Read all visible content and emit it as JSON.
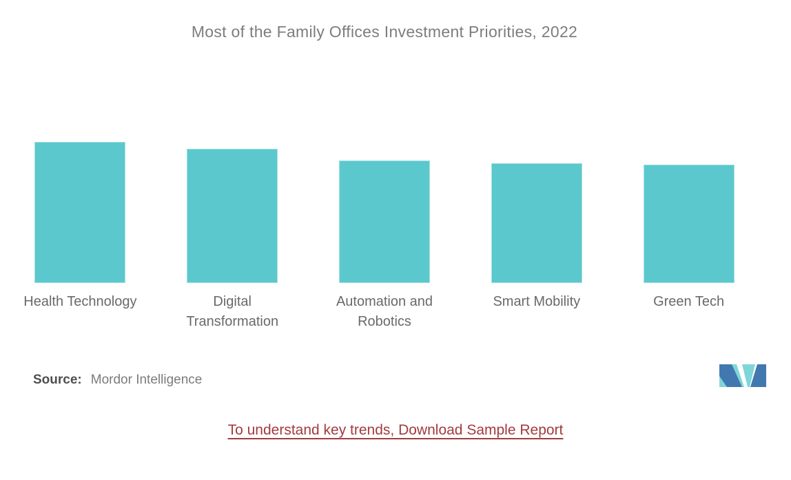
{
  "header": {
    "title": "Most of the Family Offices Investment Priorities, 2022"
  },
  "chart_data": {
    "type": "bar",
    "title": "Most of the Family Offices Investment Priorities, 2022",
    "categories": [
      "Health Technology",
      "Digital Transformation",
      "Automation and Robotics",
      "Smart Mobility",
      "Green Tech"
    ],
    "category_label_lines": [
      [
        "Health Technology"
      ],
      [
        "Digital",
        "Transformation"
      ],
      [
        "Automation and",
        "Robotics"
      ],
      [
        "Smart Mobility"
      ],
      [
        "Green Tech"
      ]
    ],
    "values": [
      100,
      95,
      87,
      85,
      84
    ],
    "values_note": "no numeric axis or data labels shown in image; values estimated from relative bar heights (tallest = 100)",
    "xlabel": "",
    "ylabel": "",
    "ylim": [
      0,
      100
    ],
    "gridlines": false,
    "value_axis_visible": false,
    "legend_position": "none",
    "bar_color": "#5BC8CE"
  },
  "source": {
    "label": "Source:",
    "value": "Mordor Intelligence"
  },
  "logo": {
    "alt": "mordor-intelligence-logo-mark",
    "teal": "#7FD6D9",
    "blue": "#4278B0"
  },
  "footer": {
    "link_text": "To understand key trends, Download Sample Report"
  },
  "colors": {
    "bar": "#5BC8CE",
    "title_text": "#7D7D7D",
    "category_label_text": "#696969",
    "source_label_text": "#4F4F4F",
    "source_value_text": "#7B7B7B",
    "link": "#A43A3C"
  }
}
